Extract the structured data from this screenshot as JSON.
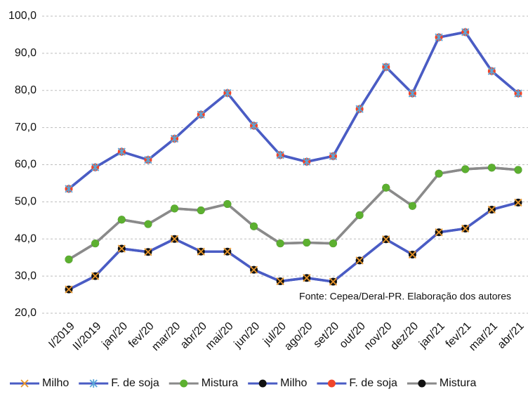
{
  "chart_data": {
    "type": "line",
    "categories": [
      "I/2019",
      "II/2019",
      "jan/20",
      "fev/20",
      "mar/20",
      "abr/20",
      "mai/20",
      "jun/20",
      "jul/20",
      "ago/20",
      "set/20",
      "out/20",
      "nov/20",
      "dez/20",
      "jan/21",
      "fev/21",
      "mar/21",
      "abr/21"
    ],
    "series": [
      {
        "name": "Milho",
        "color": "#4a5cc4",
        "marker": "x",
        "marker_color": "#e8952a",
        "values": [
          26.4,
          30,
          37.4,
          36.5,
          40,
          36.6,
          36.6,
          31.7,
          28.6,
          29.5,
          28.5,
          34.2,
          39.9,
          35.8,
          41.8,
          42.8,
          47.9,
          49.8
        ]
      },
      {
        "name": "F. de soja",
        "color": "#4a5cc4",
        "marker": "asterisk",
        "marker_color": "#5aa6d8",
        "values": [
          53.5,
          59.3,
          63.5,
          61.3,
          67,
          73.5,
          79.3,
          70.5,
          62.6,
          60.8,
          62.3,
          75,
          86.3,
          79.2,
          94.3,
          95.7,
          85.2,
          79.2
        ]
      },
      {
        "name": "Mistura",
        "color": "#8a8a8a",
        "marker": "circle",
        "marker_color": "#5cb030",
        "values": [
          34.5,
          38.8,
          45.2,
          44,
          48.2,
          47.7,
          49.4,
          43.4,
          38.8,
          39,
          38.8,
          46.4,
          53.8,
          48.9,
          57.6,
          58.8,
          59.2,
          58.6
        ]
      },
      {
        "name": "Milho",
        "color": "#4a5cc4",
        "marker": "circle",
        "marker_color": "#111111",
        "values": [
          26.4,
          30,
          37.4,
          36.5,
          40,
          36.6,
          36.6,
          31.7,
          28.6,
          29.5,
          28.5,
          34.2,
          39.9,
          35.8,
          41.8,
          42.8,
          47.9,
          49.8
        ]
      },
      {
        "name": "F. de soja",
        "color": "#4a5cc4",
        "marker": "circle",
        "marker_color": "#f0452a",
        "values": [
          53.5,
          59.3,
          63.5,
          61.3,
          67,
          73.5,
          79.3,
          70.5,
          62.6,
          60.8,
          62.3,
          75,
          86.3,
          79.2,
          94.3,
          95.7,
          85.2,
          79.2
        ]
      },
      {
        "name": "Mistura",
        "color": "#8a8a8a",
        "marker": "circle",
        "marker_color": "#111111",
        "values": [
          34.5,
          38.8,
          45.2,
          44,
          48.2,
          47.7,
          49.4,
          43.4,
          38.8,
          39,
          38.8,
          46.4,
          53.8,
          48.9,
          57.6,
          58.8,
          59.2,
          58.6
        ]
      }
    ],
    "ylim": [
      20,
      100
    ],
    "yticks": [
      {
        "value": 20,
        "label": "20,0"
      },
      {
        "value": 30,
        "label": "30,0"
      },
      {
        "value": 40,
        "label": "40,0"
      },
      {
        "value": 50,
        "label": "50,0"
      },
      {
        "value": 60,
        "label": "60,0"
      },
      {
        "value": 70,
        "label": "70,0"
      },
      {
        "value": 80,
        "label": "80,0"
      },
      {
        "value": 90,
        "label": "90,0"
      },
      {
        "value": 100,
        "label": "100,0"
      }
    ],
    "grid": true,
    "legend": "bottom",
    "annotation": "Fonte: Cepea/Deral-PR. Elaboração dos autores"
  }
}
